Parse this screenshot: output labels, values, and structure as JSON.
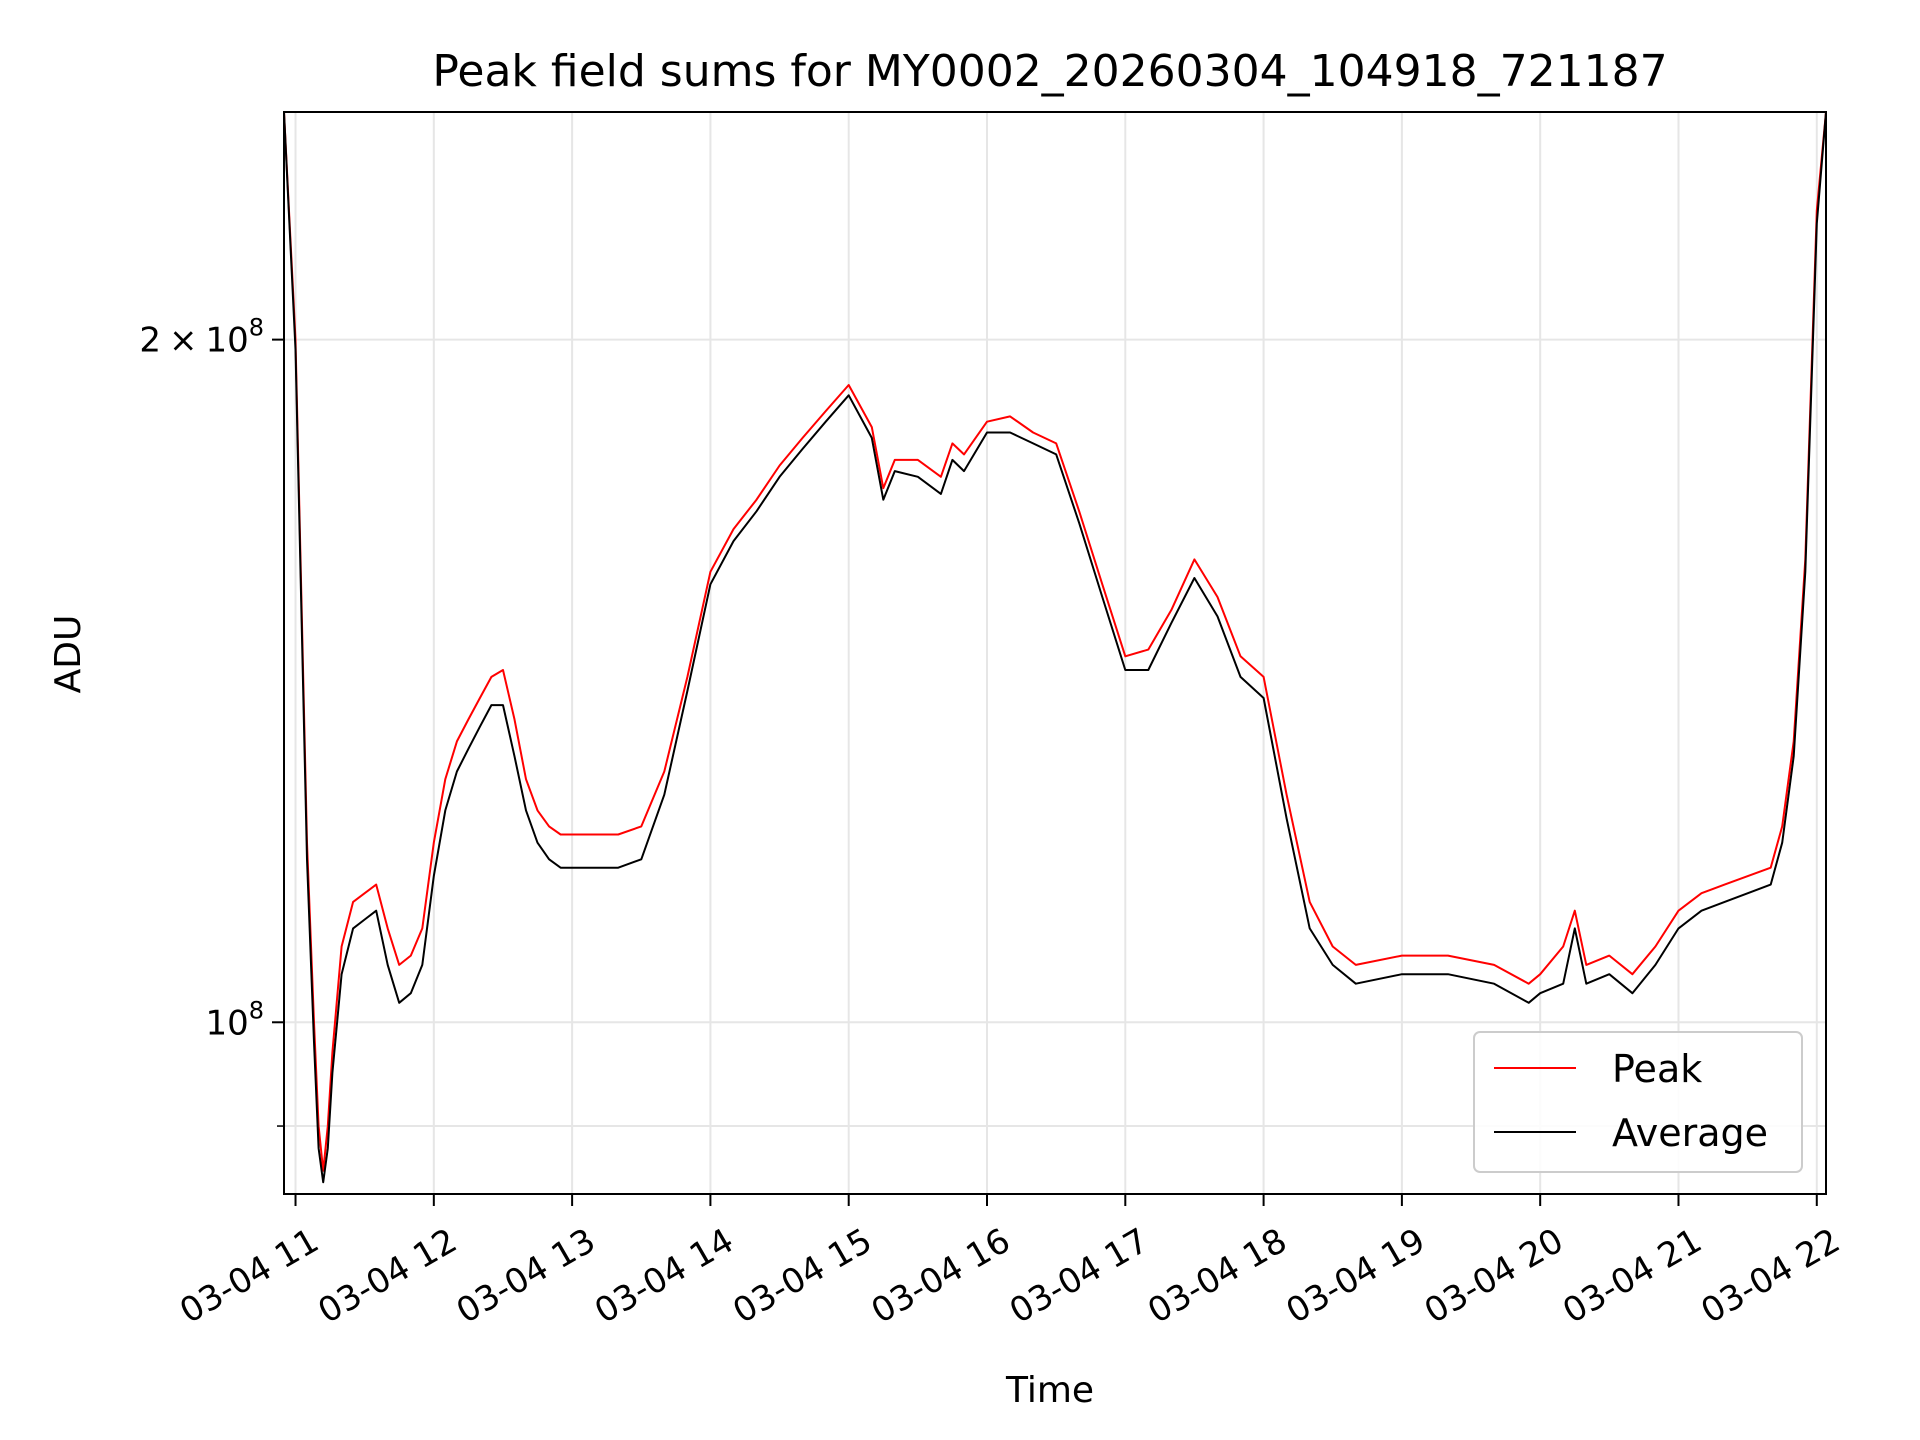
{
  "chart_data": {
    "type": "line",
    "title": "Peak field sums for MY0002_20260304_104918_721187",
    "xlabel": "Time",
    "ylabel": "ADU",
    "yscale": "log",
    "ylim": [
      84000000,
      252000000
    ],
    "xlim": [
      "2026-03-04 10:55",
      "2026-03-04 22:04"
    ],
    "grid": true,
    "legend": "lower-right",
    "x_ticks": [
      {
        "value": "2026-03-04 11:00",
        "label": "03-04 11"
      },
      {
        "value": "2026-03-04 12:00",
        "label": "03-04 12"
      },
      {
        "value": "2026-03-04 13:00",
        "label": "03-04 13"
      },
      {
        "value": "2026-03-04 14:00",
        "label": "03-04 14"
      },
      {
        "value": "2026-03-04 15:00",
        "label": "03-04 15"
      },
      {
        "value": "2026-03-04 16:00",
        "label": "03-04 16"
      },
      {
        "value": "2026-03-04 17:00",
        "label": "03-04 17"
      },
      {
        "value": "2026-03-04 18:00",
        "label": "03-04 18"
      },
      {
        "value": "2026-03-04 19:00",
        "label": "03-04 19"
      },
      {
        "value": "2026-03-04 20:00",
        "label": "03-04 20"
      },
      {
        "value": "2026-03-04 21:00",
        "label": "03-04 21"
      },
      {
        "value": "2026-03-04 22:00",
        "label": "03-04 22"
      }
    ],
    "y_ticks_major": [
      {
        "value": 100000000,
        "base": "10",
        "exp": "8",
        "coef": ""
      },
      {
        "value": 200000000,
        "base": "10",
        "exp": "8",
        "coef": "2"
      }
    ],
    "y_ticks_minor": [
      90000000
    ],
    "series": [
      {
        "name": "Peak",
        "color": "#ff0000",
        "x": [
          "2026-03-04 10:55",
          "2026-03-04 11:00",
          "2026-03-04 11:05",
          "2026-03-04 11:08",
          "2026-03-04 11:10",
          "2026-03-04 11:12",
          "2026-03-04 11:14",
          "2026-03-04 11:16",
          "2026-03-04 11:20",
          "2026-03-04 11:25",
          "2026-03-04 11:30",
          "2026-03-04 11:35",
          "2026-03-04 11:40",
          "2026-03-04 11:45",
          "2026-03-04 11:50",
          "2026-03-04 11:55",
          "2026-03-04 12:00",
          "2026-03-04 12:05",
          "2026-03-04 12:10",
          "2026-03-04 12:15",
          "2026-03-04 12:20",
          "2026-03-04 12:25",
          "2026-03-04 12:30",
          "2026-03-04 12:35",
          "2026-03-04 12:40",
          "2026-03-04 12:45",
          "2026-03-04 12:50",
          "2026-03-04 12:55",
          "2026-03-04 13:00",
          "2026-03-04 13:10",
          "2026-03-04 13:20",
          "2026-03-04 13:30",
          "2026-03-04 13:40",
          "2026-03-04 13:50",
          "2026-03-04 14:00",
          "2026-03-04 14:10",
          "2026-03-04 14:20",
          "2026-03-04 14:30",
          "2026-03-04 14:40",
          "2026-03-04 14:50",
          "2026-03-04 15:00",
          "2026-03-04 15:10",
          "2026-03-04 15:15",
          "2026-03-04 15:20",
          "2026-03-04 15:30",
          "2026-03-04 15:40",
          "2026-03-04 15:45",
          "2026-03-04 15:50",
          "2026-03-04 16:00",
          "2026-03-04 16:10",
          "2026-03-04 16:20",
          "2026-03-04 16:30",
          "2026-03-04 16:40",
          "2026-03-04 16:50",
          "2026-03-04 17:00",
          "2026-03-04 17:10",
          "2026-03-04 17:20",
          "2026-03-04 17:30",
          "2026-03-04 17:40",
          "2026-03-04 17:50",
          "2026-03-04 18:00",
          "2026-03-04 18:10",
          "2026-03-04 18:20",
          "2026-03-04 18:30",
          "2026-03-04 18:40",
          "2026-03-04 19:00",
          "2026-03-04 19:20",
          "2026-03-04 19:40",
          "2026-03-04 19:55",
          "2026-03-04 20:00",
          "2026-03-04 20:10",
          "2026-03-04 20:15",
          "2026-03-04 20:20",
          "2026-03-04 20:30",
          "2026-03-04 20:40",
          "2026-03-04 20:50",
          "2026-03-04 21:00",
          "2026-03-04 21:10",
          "2026-03-04 21:20",
          "2026-03-04 21:40",
          "2026-03-04 21:45",
          "2026-03-04 21:50",
          "2026-03-04 21:55",
          "2026-03-04 22:00",
          "2026-03-04 22:04"
        ],
        "values": [
          252000000,
          200000000,
          120000000,
          100000000,
          90000000,
          86000000,
          90000000,
          97000000,
          108000000,
          113000000,
          114000000,
          115000000,
          110000000,
          106000000,
          107000000,
          110000000,
          120000000,
          128000000,
          133000000,
          136000000,
          139000000,
          142000000,
          143000000,
          136000000,
          128000000,
          124000000,
          122000000,
          121000000,
          121000000,
          121000000,
          121000000,
          122000000,
          129000000,
          142000000,
          158000000,
          165000000,
          170000000,
          176000000,
          181000000,
          186000000,
          191000000,
          183000000,
          172000000,
          177000000,
          177000000,
          174000000,
          180000000,
          178000000,
          184000000,
          185000000,
          182000000,
          180000000,
          168000000,
          156000000,
          145000000,
          146000000,
          152000000,
          160000000,
          154000000,
          145000000,
          142000000,
          126000000,
          113000000,
          108000000,
          106000000,
          107000000,
          107000000,
          106000000,
          104000000,
          105000000,
          108000000,
          112000000,
          106000000,
          107000000,
          105000000,
          108000000,
          112000000,
          114000000,
          115000000,
          117000000,
          122000000,
          133000000,
          160000000,
          228000000,
          252000000
        ]
      },
      {
        "name": "Average",
        "color": "#000000",
        "x": [
          "2026-03-04 10:55",
          "2026-03-04 11:00",
          "2026-03-04 11:05",
          "2026-03-04 11:08",
          "2026-03-04 11:10",
          "2026-03-04 11:12",
          "2026-03-04 11:14",
          "2026-03-04 11:16",
          "2026-03-04 11:20",
          "2026-03-04 11:25",
          "2026-03-04 11:30",
          "2026-03-04 11:35",
          "2026-03-04 11:40",
          "2026-03-04 11:45",
          "2026-03-04 11:50",
          "2026-03-04 11:55",
          "2026-03-04 12:00",
          "2026-03-04 12:05",
          "2026-03-04 12:10",
          "2026-03-04 12:15",
          "2026-03-04 12:20",
          "2026-03-04 12:25",
          "2026-03-04 12:30",
          "2026-03-04 12:35",
          "2026-03-04 12:40",
          "2026-03-04 12:45",
          "2026-03-04 12:50",
          "2026-03-04 12:55",
          "2026-03-04 13:00",
          "2026-03-04 13:10",
          "2026-03-04 13:20",
          "2026-03-04 13:30",
          "2026-03-04 13:40",
          "2026-03-04 13:50",
          "2026-03-04 14:00",
          "2026-03-04 14:10",
          "2026-03-04 14:20",
          "2026-03-04 14:30",
          "2026-03-04 14:40",
          "2026-03-04 14:50",
          "2026-03-04 15:00",
          "2026-03-04 15:10",
          "2026-03-04 15:15",
          "2026-03-04 15:20",
          "2026-03-04 15:30",
          "2026-03-04 15:40",
          "2026-03-04 15:45",
          "2026-03-04 15:50",
          "2026-03-04 16:00",
          "2026-03-04 16:10",
          "2026-03-04 16:20",
          "2026-03-04 16:30",
          "2026-03-04 16:40",
          "2026-03-04 16:50",
          "2026-03-04 17:00",
          "2026-03-04 17:10",
          "2026-03-04 17:20",
          "2026-03-04 17:30",
          "2026-03-04 17:40",
          "2026-03-04 17:50",
          "2026-03-04 18:00",
          "2026-03-04 18:10",
          "2026-03-04 18:20",
          "2026-03-04 18:30",
          "2026-03-04 18:40",
          "2026-03-04 19:00",
          "2026-03-04 19:20",
          "2026-03-04 19:40",
          "2026-03-04 19:55",
          "2026-03-04 20:00",
          "2026-03-04 20:10",
          "2026-03-04 20:15",
          "2026-03-04 20:20",
          "2026-03-04 20:30",
          "2026-03-04 20:40",
          "2026-03-04 20:50",
          "2026-03-04 21:00",
          "2026-03-04 21:10",
          "2026-03-04 21:20",
          "2026-03-04 21:40",
          "2026-03-04 21:45",
          "2026-03-04 21:50",
          "2026-03-04 21:55",
          "2026-03-04 22:00",
          "2026-03-04 22:04"
        ],
        "values": [
          252000000,
          198000000,
          118000000,
          98000000,
          88000000,
          85000000,
          88000000,
          95000000,
          105000000,
          110000000,
          111000000,
          112000000,
          106000000,
          102000000,
          103000000,
          106000000,
          116000000,
          124000000,
          129000000,
          132000000,
          135000000,
          138000000,
          138000000,
          131000000,
          124000000,
          120000000,
          118000000,
          117000000,
          117000000,
          117000000,
          117000000,
          118000000,
          126000000,
          140000000,
          156000000,
          163000000,
          168000000,
          174000000,
          179000000,
          184000000,
          189000000,
          181000000,
          170000000,
          175000000,
          174000000,
          171000000,
          177000000,
          175000000,
          182000000,
          182000000,
          180000000,
          178000000,
          166000000,
          154000000,
          143000000,
          143000000,
          150000000,
          157000000,
          151000000,
          142000000,
          139000000,
          123000000,
          110000000,
          106000000,
          104000000,
          105000000,
          105000000,
          104000000,
          102000000,
          103000000,
          104000000,
          110000000,
          104000000,
          105000000,
          103000000,
          106000000,
          110000000,
          112000000,
          113000000,
          115000000,
          120000000,
          131000000,
          158000000,
          225000000,
          252000000
        ]
      }
    ]
  }
}
